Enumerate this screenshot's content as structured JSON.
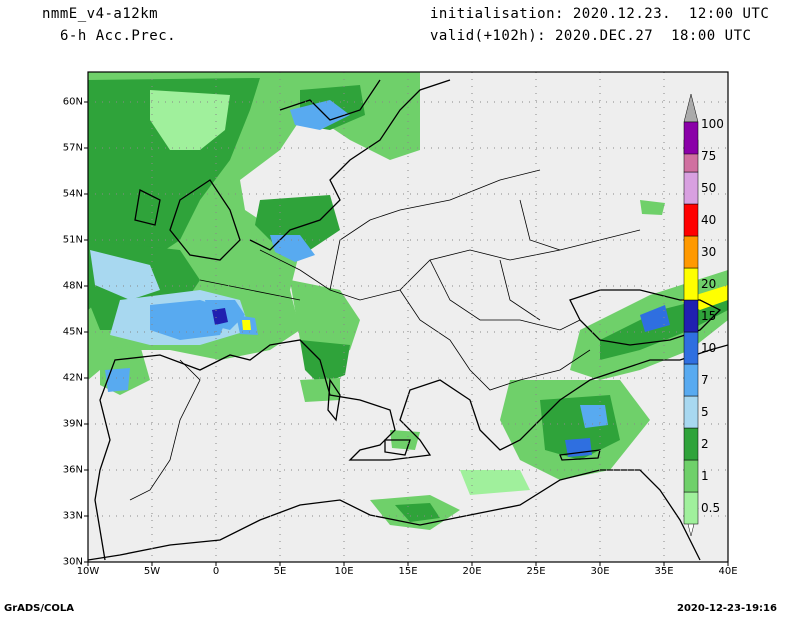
{
  "header": {
    "model": "nmmE_v4-a12km",
    "field": "6-h Acc.Prec.",
    "init": "initialisation: 2020.12.23.  12:00 UTC",
    "valid": "valid(+102h): 2020.DEC.27  18:00 UTC"
  },
  "footer": {
    "left": "GrADS/COLA",
    "right": "2020-12-23-19:16"
  },
  "map": {
    "lat_ticks": [
      "60N",
      "57N",
      "54N",
      "51N",
      "48N",
      "45N",
      "42N",
      "39N",
      "36N",
      "33N",
      "30N"
    ],
    "lon_ticks": [
      "10W",
      "5W",
      "0",
      "5E",
      "10E",
      "15E",
      "20E",
      "25E",
      "30E",
      "35E",
      "40E"
    ],
    "extent": {
      "lon": [
        -10,
        40
      ],
      "lat": [
        30,
        62
      ]
    }
  },
  "legend": {
    "labels": [
      "0.5",
      "1",
      "2",
      "5",
      "7",
      "10",
      "15",
      "20",
      "30",
      "40",
      "50",
      "75",
      "100"
    ],
    "colors": [
      "#a0f09c",
      "#6fd06a",
      "#2fa33a",
      "#a8d8f0",
      "#58aaf0",
      "#2f6fe0",
      "#2020b0",
      "#ffff00",
      "#ff9900",
      "#ff0000",
      "#d8a0e0",
      "#d070a0",
      "#8a00a8"
    ]
  }
}
